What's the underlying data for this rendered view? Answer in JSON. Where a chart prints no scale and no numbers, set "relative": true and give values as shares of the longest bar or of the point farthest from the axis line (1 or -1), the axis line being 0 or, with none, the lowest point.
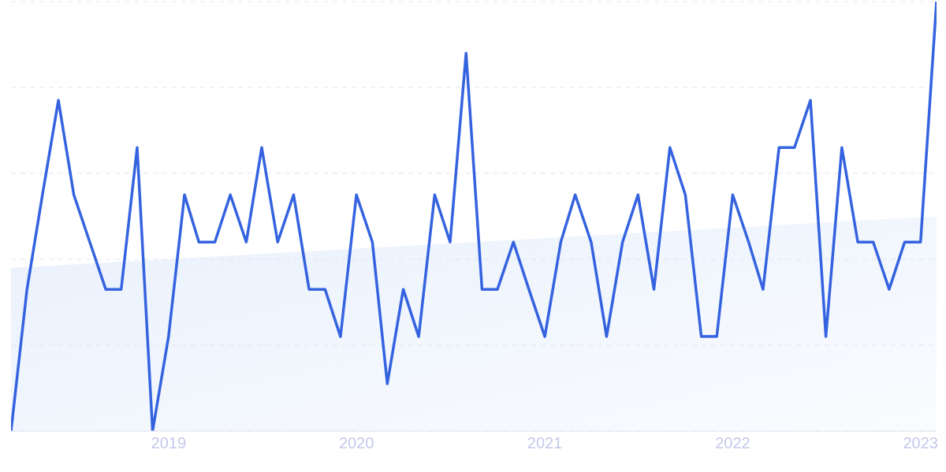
{
  "chart_data": {
    "type": "line",
    "relative": true,
    "grid": "y",
    "line_style": "solid",
    "marker": "none",
    "x": [
      "2018-03",
      "2018-04",
      "2018-05",
      "2018-06",
      "2018-07",
      "2018-08",
      "2018-09",
      "2018-10",
      "2018-11",
      "2018-12",
      "2019-01",
      "2019-02",
      "2019-03",
      "2019-04",
      "2019-05",
      "2019-06",
      "2019-07",
      "2019-08",
      "2019-09",
      "2019-10",
      "2019-11",
      "2019-12",
      "2020-01",
      "2020-02",
      "2020-03",
      "2020-04",
      "2020-05",
      "2020-06",
      "2020-07",
      "2020-08",
      "2020-09",
      "2020-10",
      "2020-11",
      "2020-12",
      "2021-01",
      "2021-02",
      "2021-03",
      "2021-04",
      "2021-05",
      "2021-06",
      "2021-07",
      "2021-08",
      "2021-09",
      "2021-10",
      "2021-11",
      "2021-12",
      "2022-01",
      "2022-02",
      "2022-03",
      "2022-04",
      "2022-05",
      "2022-06",
      "2022-07",
      "2022-08",
      "2022-09",
      "2022-10",
      "2022-11",
      "2022-12",
      "2023-01",
      "2023-02"
    ],
    "xlim": [
      "2018-03",
      "2023-02"
    ],
    "xticks": [
      "2019",
      "2020",
      "2021",
      "2022",
      "2023"
    ],
    "series": [
      {
        "type": "area",
        "color": "#dbe8fb",
        "x": [
          "2018-03",
          "2023-02"
        ],
        "values": [
          0.38,
          0.5
        ]
      },
      {
        "color": "#3563e0",
        "values": [
          0,
          0.33,
          0.55,
          0.77,
          0.55,
          0.44,
          0.33,
          0.33,
          0.66,
          0,
          0.22,
          0.55,
          0.44,
          0.44,
          0.55,
          0.44,
          0.66,
          0.44,
          0.55,
          0.33,
          0.33,
          0.22,
          0.55,
          0.44,
          0.11,
          0.33,
          0.22,
          0.55,
          0.44,
          0.88,
          0.33,
          0.33,
          0.44,
          0.33,
          0.22,
          0.44,
          0.55,
          0.44,
          0.22,
          0.44,
          0.55,
          0.33,
          0.66,
          0.55,
          0.22,
          0.22,
          0.55,
          0.44,
          0.33,
          0.66,
          0.66,
          0.77,
          0.22,
          0.66,
          0.44,
          0.44,
          0.33,
          0.44,
          0.44,
          1
        ]
      }
    ]
  }
}
